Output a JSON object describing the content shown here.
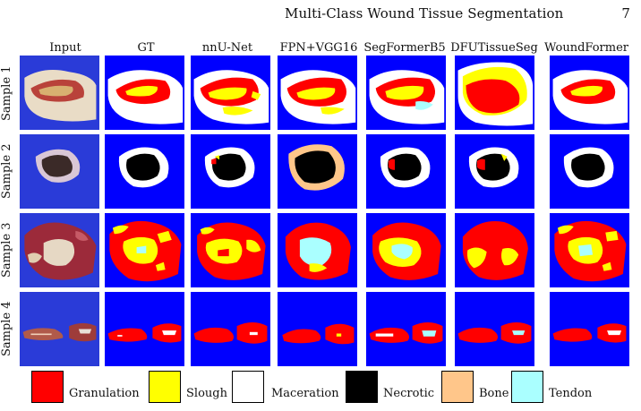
{
  "header": {
    "title": "Multi-Class Wound Tissue Segmentation",
    "page_number": "7"
  },
  "columns": [
    "Input",
    "GT",
    "nnU-Net",
    "FPN+VGG16",
    "SegFormerB5",
    "DFUTissueSeg",
    "WoundFormer"
  ],
  "rows": [
    "Sample 1",
    "Sample 2",
    "Sample 3",
    "Sample 4"
  ],
  "legend": [
    {
      "label": "Granulation",
      "color": "#ff0000"
    },
    {
      "label": "Slough",
      "color": "#ffff00"
    },
    {
      "label": "Maceration",
      "color": "#ffffff"
    },
    {
      "label": "Necrotic",
      "color": "#000000"
    },
    {
      "label": "Bone",
      "color": "#ffc68a"
    },
    {
      "label": "Tendon",
      "color": "#aaffff"
    }
  ],
  "colors": {
    "background": "#0000ff"
  }
}
